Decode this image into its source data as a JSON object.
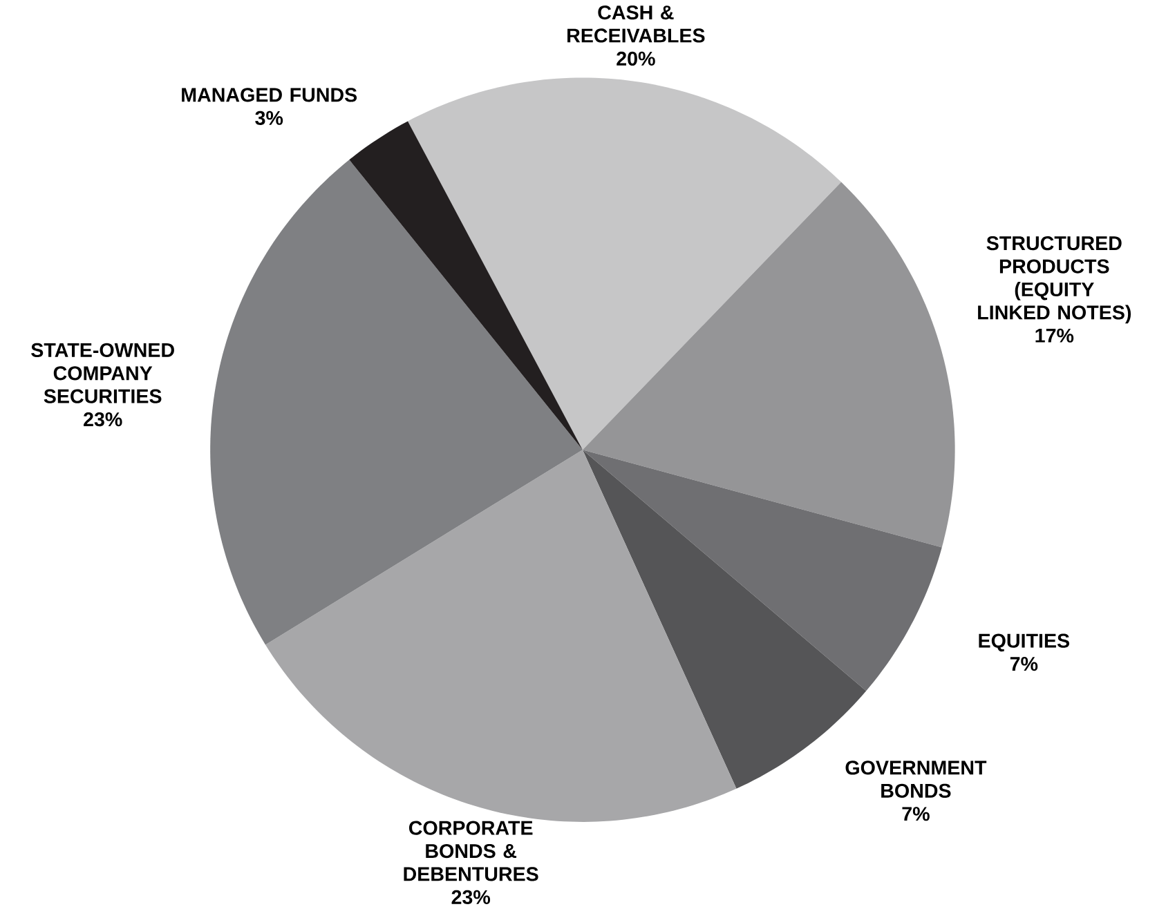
{
  "chart_data": {
    "type": "pie",
    "categories": [
      "CASH & RECEIVABLES",
      "STRUCTURED PRODUCTS (EQUITY LINKED NOTES)",
      "EQUITIES",
      "GOVERNMENT BONDS",
      "CORPORATE BONDS & DEBENTURES",
      "STATE-OWNED COMPANY SECURITIES",
      "MANAGED FUNDS"
    ],
    "values": [
      20,
      17,
      7,
      7,
      23,
      23,
      3
    ],
    "value_labels": [
      "20%",
      "17%",
      "7%",
      "7%",
      "23%",
      "23%",
      "3%"
    ],
    "colors": [
      "#c6c6c7",
      "#959597",
      "#6f6f72",
      "#555557",
      "#a7a7a9",
      "#7f8083",
      "#231f20"
    ]
  }
}
